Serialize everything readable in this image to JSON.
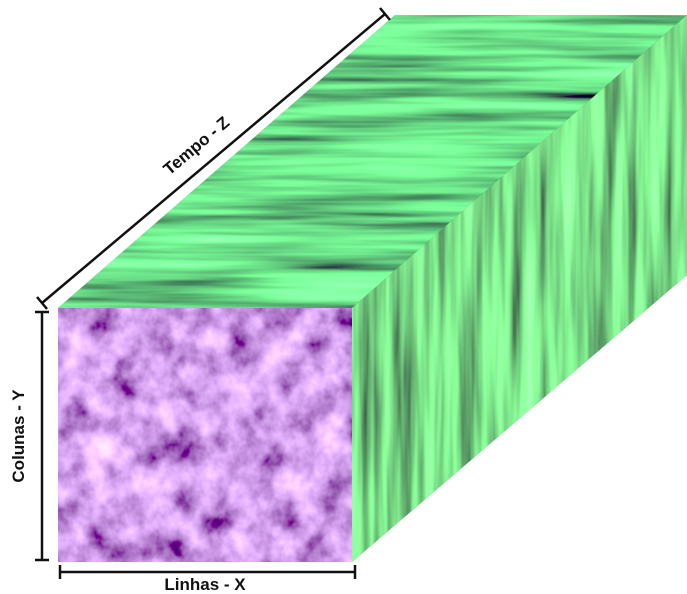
{
  "axes": {
    "z": "Tempo - Z",
    "y": "Colunas - Y",
    "x": "Linhas - X"
  }
}
